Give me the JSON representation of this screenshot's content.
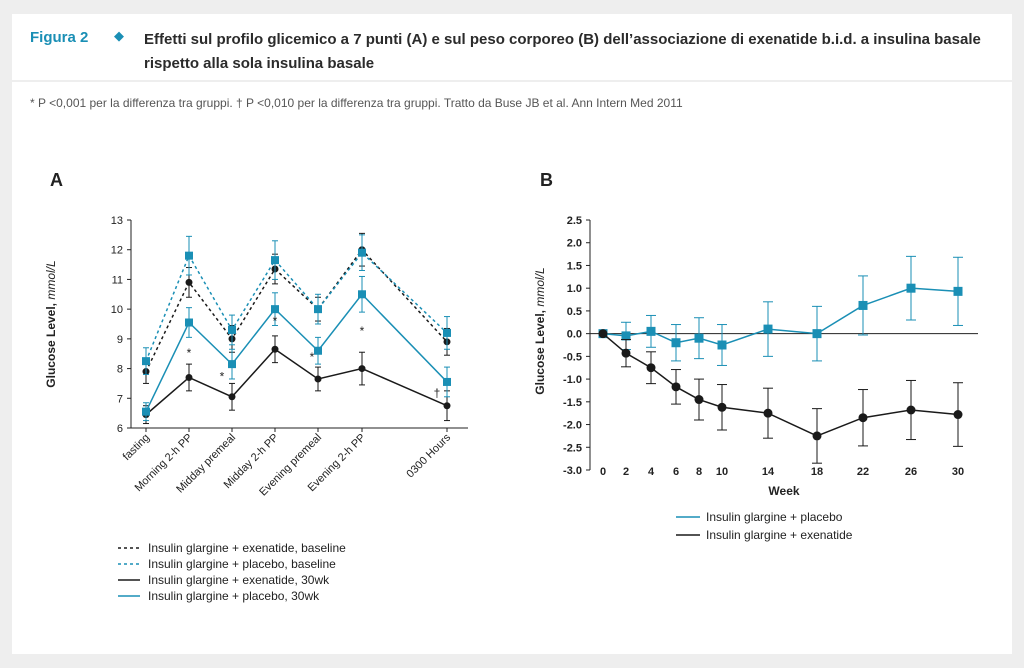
{
  "header": {
    "figure_label": "Figura 2",
    "title": "Effetti sul profilo glicemico a 7 punti (A) e sul peso corporeo (B) dell’associazione di exenatide b.i.d. a insulina basale rispetto alla sola insulina basale"
  },
  "footnote": "* P <0,001 per la differenza tra gruppi. † P <0,010 per la differenza tra gruppi. Tratto da Buse JB et al. Ann Intern Med 2011",
  "colors": {
    "black": "#1a1a1a",
    "blue": "#1a8fb5"
  },
  "chart_data": [
    {
      "panel": "A",
      "type": "line",
      "ylabel": "Glucose Level,",
      "ylabel_unit": "mmol/L",
      "ylim": [
        6,
        13
      ],
      "yticks": [
        "6",
        "7",
        "8",
        "9",
        "10",
        "11",
        "12",
        "13"
      ],
      "categories": [
        "fasting",
        "Morning 2-h PP",
        "Midday premeal",
        "Midday 2-h PP",
        "Evening premeal",
        "Evening 2-h PP",
        "0300 Hours"
      ],
      "series": [
        {
          "name": "Insulin glargine + exenatide, baseline",
          "color": "black",
          "style": "dashed",
          "marker": "circle",
          "values": [
            7.9,
            10.9,
            9.0,
            11.35,
            10.0,
            12.0,
            8.9
          ],
          "err": [
            0.4,
            0.5,
            0.45,
            0.5,
            0.4,
            0.55,
            0.45
          ]
        },
        {
          "name": "Insulin glargine + placebo, baseline",
          "color": "blue",
          "style": "dashed",
          "marker": "square",
          "values": [
            8.25,
            11.8,
            9.3,
            11.65,
            10.0,
            11.9,
            9.2
          ],
          "err": [
            0.45,
            0.65,
            0.5,
            0.65,
            0.5,
            0.6,
            0.55
          ]
        },
        {
          "name": "Insulin glargine + exenatide, 30wk",
          "color": "black",
          "style": "solid",
          "marker": "circle",
          "values": [
            6.45,
            7.7,
            7.05,
            8.65,
            7.65,
            8.0,
            6.75
          ],
          "err": [
            0.3,
            0.45,
            0.45,
            0.45,
            0.4,
            0.55,
            0.5
          ]
        },
        {
          "name": "Insulin glargine + placebo, 30wk",
          "color": "blue",
          "style": "solid",
          "marker": "square",
          "values": [
            6.55,
            9.55,
            8.15,
            10.0,
            8.6,
            10.5,
            7.55
          ],
          "err": [
            0.3,
            0.5,
            0.5,
            0.55,
            0.45,
            0.6,
            0.5
          ]
        }
      ],
      "annotations": [
        {
          "text": "*",
          "category": 1
        },
        {
          "text": "*",
          "category": 2
        },
        {
          "text": "*",
          "category": 3
        },
        {
          "text": "*",
          "category": 4
        },
        {
          "text": "*",
          "category": 5
        },
        {
          "text": "†",
          "category": 6
        }
      ]
    },
    {
      "panel": "B",
      "type": "line",
      "xlabel": "Week",
      "ylabel": "Glucose Level,",
      "ylabel_unit": "mmol/L",
      "ylim": [
        -3.0,
        2.5
      ],
      "yticks": [
        "2.5",
        "2.0",
        "1.5",
        "1.0",
        "0.5",
        "0.0",
        "-0.5",
        "-1.0",
        "-1.5",
        "-2.0",
        "-2.5",
        "-3.0"
      ],
      "x": [
        0,
        2,
        4,
        6,
        8,
        10,
        14,
        18,
        22,
        26,
        30
      ],
      "series": [
        {
          "name": "Insulin glargine + placebo",
          "color": "blue",
          "marker": "square",
          "values": [
            0,
            -0.05,
            0.05,
            -0.2,
            -0.1,
            -0.25,
            0.1,
            0.0,
            0.62,
            1.0,
            0.93
          ],
          "err": [
            0.0,
            0.3,
            0.35,
            0.4,
            0.45,
            0.45,
            0.6,
            0.6,
            0.65,
            0.7,
            0.75
          ]
        },
        {
          "name": "Insulin glargine + exenatide",
          "color": "black",
          "marker": "circle",
          "values": [
            0,
            -0.43,
            -0.75,
            -1.17,
            -1.45,
            -1.62,
            -1.75,
            -2.25,
            -1.85,
            -1.68,
            -1.78
          ],
          "err": [
            0.0,
            0.3,
            0.35,
            0.38,
            0.45,
            0.5,
            0.55,
            0.6,
            0.62,
            0.65,
            0.7
          ]
        }
      ]
    }
  ]
}
